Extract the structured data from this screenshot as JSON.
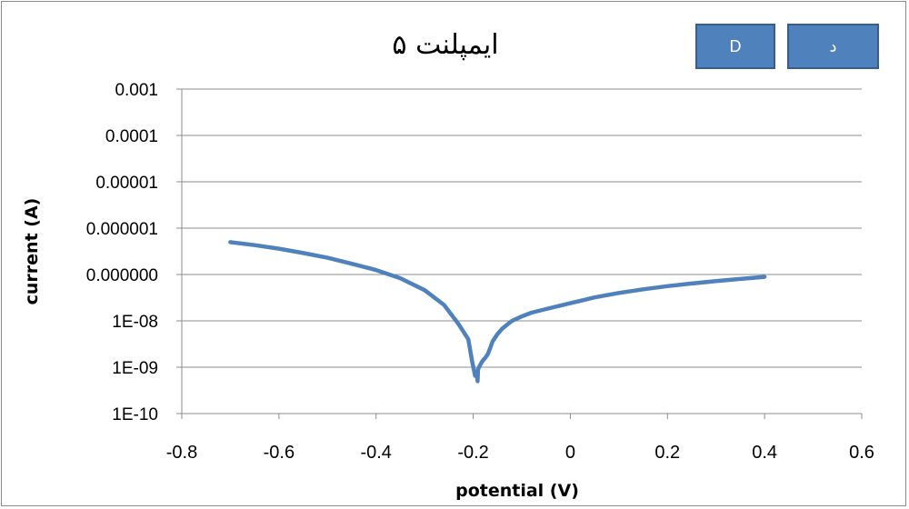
{
  "chart_data": {
    "type": "line",
    "title": "ایمپلنت ۵",
    "xlabel": "potential (V)",
    "ylabel": "current (A)",
    "xlim": [
      -0.8,
      0.6
    ],
    "x_ticks": [
      -0.8,
      -0.6,
      -0.4,
      -0.2,
      0,
      0.2,
      0.4,
      0.6
    ],
    "x_tick_labels": [
      "-0.8",
      "-0.6",
      "-0.4",
      "-0.2",
      "0",
      "0.2",
      "0.4",
      "0.6"
    ],
    "y_scale": "log",
    "ylim": [
      1e-10,
      0.001
    ],
    "y_ticks": [
      0.001,
      0.0001,
      1e-05,
      1e-06,
      1e-07,
      1e-08,
      1e-09,
      1e-10
    ],
    "y_tick_labels": [
      "0.001",
      "0.0001",
      "0.00001",
      "0.000001",
      "0.000000",
      "1E-08",
      "1E-09",
      "1E-10"
    ],
    "grid": "horizontal",
    "series": [
      {
        "color": "#4f81bd",
        "x": [
          -0.7,
          -0.65,
          -0.6,
          -0.55,
          -0.5,
          -0.45,
          -0.4,
          -0.35,
          -0.3,
          -0.26,
          -0.23,
          -0.21,
          -0.202,
          -0.196,
          -0.193,
          -0.191,
          -0.19,
          -0.188,
          -0.186,
          -0.184,
          -0.18,
          -0.175,
          -0.17,
          -0.165,
          -0.16,
          -0.15,
          -0.14,
          -0.13,
          -0.12,
          -0.1,
          -0.08,
          -0.05,
          0.0,
          0.05,
          0.1,
          0.15,
          0.2,
          0.25,
          0.3,
          0.35,
          0.4
        ],
        "y": [
          5e-07,
          4.3e-07,
          3.6e-07,
          2.9e-07,
          2.3e-07,
          1.7e-07,
          1.25e-07,
          8.3e-08,
          4.6e-08,
          2.2e-08,
          8.5e-09,
          4e-09,
          1.3e-09,
          6.5e-10,
          8e-10,
          5e-10,
          9e-10,
          1e-09,
          1.1e-09,
          1.2e-09,
          1.4e-09,
          1.6e-09,
          1.9e-09,
          2.6e-09,
          3.6e-09,
          5.2e-09,
          6.8e-09,
          8.3e-09,
          1e-08,
          1.25e-08,
          1.5e-08,
          1.8e-08,
          2.4e-08,
          3.2e-08,
          4e-08,
          4.8e-08,
          5.6e-08,
          6.4e-08,
          7.2e-08,
          8e-08,
          8.9e-08
        ]
      }
    ]
  },
  "legend": {
    "button_1_label": "D",
    "button_2_label": "د"
  }
}
